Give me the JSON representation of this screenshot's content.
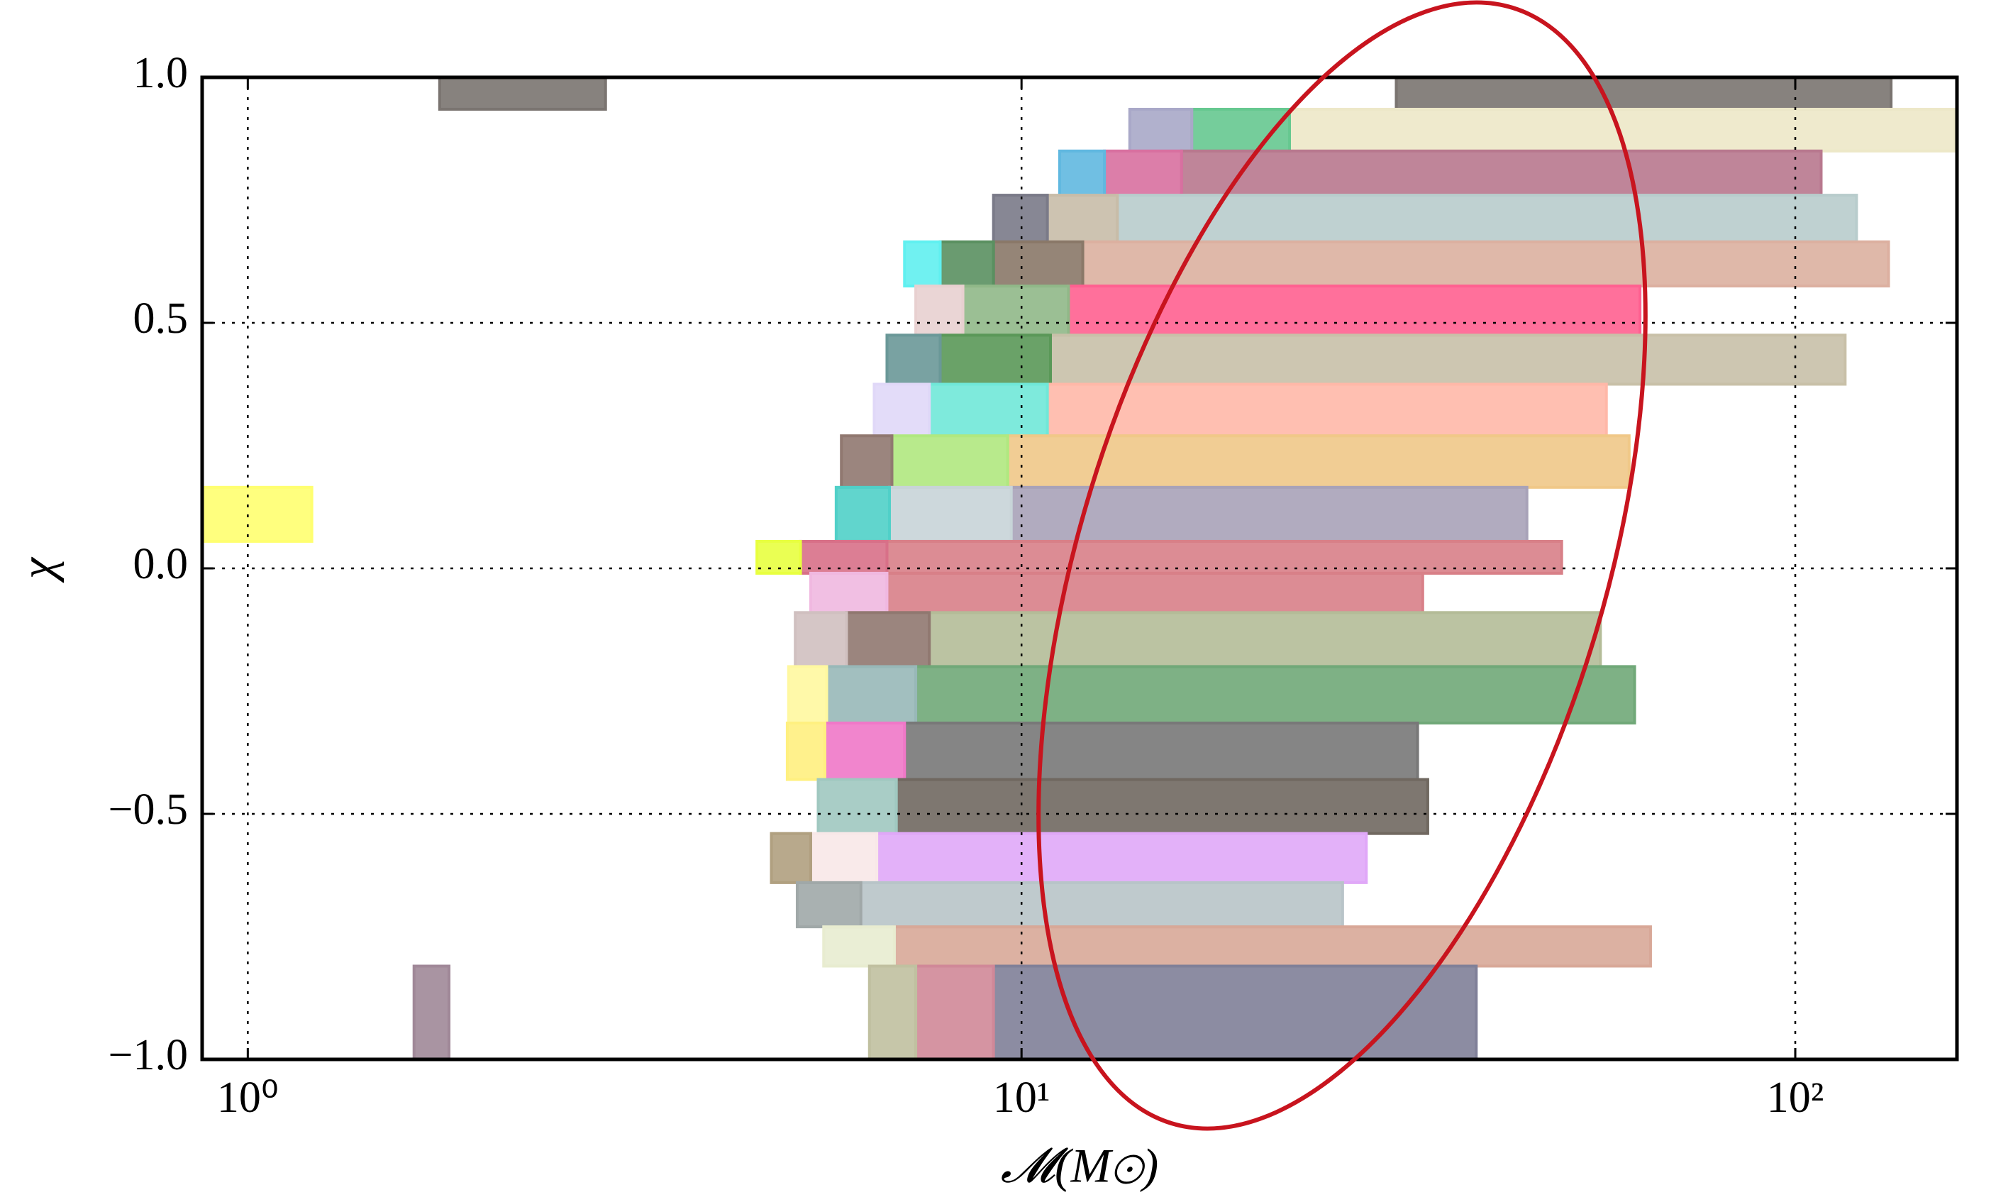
{
  "chart_data": {
    "type": "rectangles",
    "x_label": "𝓜(M⊙)",
    "y_label": "χ",
    "xscale": "log",
    "grid": true,
    "xlim": [
      0.873,
      161.8
    ],
    "ylim": [
      -1,
      1
    ],
    "xticks": [
      {
        "value": 1,
        "label": "10⁰"
      },
      {
        "value": 10,
        "label": "10¹"
      },
      {
        "value": 100,
        "label": "10²"
      }
    ],
    "yticks": [
      {
        "value": -1,
        "label": "−1.0"
      },
      {
        "value": -0.5,
        "label": "−0.5"
      },
      {
        "value": 0,
        "label": "0.0"
      },
      0.5,
      {
        "value": 1,
        "label": "1.0"
      }
    ],
    "rects": [
      {
        "x": [
          30.5,
          133
        ],
        "y": [
          0.935,
          1.0
        ],
        "color": "#7a7470"
      },
      {
        "x": [
          1.77,
          2.9
        ],
        "y": [
          0.935,
          1.0
        ],
        "color": "#7a7470"
      },
      {
        "x": [
          22.2,
          161
        ],
        "y": [
          0.85,
          0.935
        ],
        "color": "#ede8c8"
      },
      {
        "x": [
          16.6,
          22.2
        ],
        "y": [
          0.85,
          0.935
        ],
        "color": "#66c890"
      },
      {
        "x": [
          13.8,
          16.6
        ],
        "y": [
          0.85,
          0.935
        ],
        "color": "#a9a8c8"
      },
      {
        "x": [
          16.1,
          108
        ],
        "y": [
          0.76,
          0.85
        ],
        "color": "#b8788e"
      },
      {
        "x": [
          12.8,
          16.1
        ],
        "y": [
          0.76,
          0.85
        ],
        "color": "#d870a0"
      },
      {
        "x": [
          11.2,
          12.8
        ],
        "y": [
          0.76,
          0.85
        ],
        "color": "#60b8e0"
      },
      {
        "x": [
          13.3,
          120
        ],
        "y": [
          0.665,
          0.76
        ],
        "color": "#b8cccc"
      },
      {
        "x": [
          10.8,
          13.3
        ],
        "y": [
          0.665,
          0.76
        ],
        "color": "#c8bca8"
      },
      {
        "x": [
          9.2,
          10.8
        ],
        "y": [
          0.665,
          0.76
        ],
        "color": "#7a7a88"
      },
      {
        "x": [
          12.0,
          132
        ],
        "y": [
          0.575,
          0.665
        ],
        "color": "#dcb0a0"
      },
      {
        "x": [
          9.2,
          12.0
        ],
        "y": [
          0.575,
          0.665
        ],
        "color": "#8a7868"
      },
      {
        "x": [
          7.85,
          9.2
        ],
        "y": [
          0.575,
          0.665
        ],
        "color": "#5a9060"
      },
      {
        "x": [
          7.06,
          7.85
        ],
        "y": [
          0.575,
          0.665
        ],
        "color": "#60f0f0"
      },
      {
        "x": [
          11.5,
          63
        ],
        "y": [
          0.475,
          0.575
        ],
        "color": "#ff6090"
      },
      {
        "x": [
          8.4,
          11.5
        ],
        "y": [
          0.475,
          0.575
        ],
        "color": "#90b888"
      },
      {
        "x": [
          7.3,
          8.4
        ],
        "y": [
          0.475,
          0.575
        ],
        "color": "#e8d0d0"
      },
      {
        "x": [
          10.9,
          116
        ],
        "y": [
          0.375,
          0.475
        ],
        "color": "#c8c0a8"
      },
      {
        "x": [
          7.85,
          10.9
        ],
        "y": [
          0.375,
          0.475
        ],
        "color": "#5a9858"
      },
      {
        "x": [
          6.7,
          7.85
        ],
        "y": [
          0.375,
          0.475
        ],
        "color": "#6a9898"
      },
      {
        "x": [
          10.8,
          57
        ],
        "y": [
          0.27,
          0.375
        ],
        "color": "#ffb8a8"
      },
      {
        "x": [
          7.6,
          10.8
        ],
        "y": [
          0.27,
          0.375
        ],
        "color": "#70e8d8"
      },
      {
        "x": [
          6.45,
          7.6
        ],
        "y": [
          0.27,
          0.375
        ],
        "color": "#e0d8f8"
      },
      {
        "x": [
          9.6,
          61
        ],
        "y": [
          0.165,
          0.27
        ],
        "color": "#f0c888"
      },
      {
        "x": [
          6.8,
          9.6
        ],
        "y": [
          0.165,
          0.27
        ],
        "color": "#b0e880"
      },
      {
        "x": [
          5.85,
          6.8
        ],
        "y": [
          0.165,
          0.27
        ],
        "color": "#907870"
      },
      {
        "x": [
          9.7,
          45
        ],
        "y": [
          0.055,
          0.165
        ],
        "color": "#a8a2b8"
      },
      {
        "x": [
          6.75,
          9.7
        ],
        "y": [
          0.055,
          0.165
        ],
        "color": "#c8d4d8"
      },
      {
        "x": [
          5.76,
          6.75
        ],
        "y": [
          0.055,
          0.165
        ],
        "color": "#50d0c8"
      },
      {
        "x": [
          0.873,
          1.21
        ],
        "y": [
          0.055,
          0.165
        ],
        "color": "#ffff70"
      },
      {
        "x": [
          6.7,
          49.9
        ],
        "y": [
          -0.01,
          0.055
        ],
        "color": "#d88088"
      },
      {
        "x": [
          5.18,
          6.7
        ],
        "y": [
          -0.01,
          0.055
        ],
        "color": "#d87088"
      },
      {
        "x": [
          4.55,
          5.18
        ],
        "y": [
          -0.01,
          0.055
        ],
        "color": "#e8ff40"
      },
      {
        "x": [
          6.7,
          33
        ],
        "y": [
          -0.09,
          -0.01
        ],
        "color": "#d88088"
      },
      {
        "x": [
          5.34,
          6.7
        ],
        "y": [
          -0.09,
          -0.01
        ],
        "color": "#f0b8e0"
      },
      {
        "x": [
          7.6,
          56
        ],
        "y": [
          -0.2,
          -0.09
        ],
        "color": "#b4bc98"
      },
      {
        "x": [
          5.94,
          7.6
        ],
        "y": [
          -0.2,
          -0.09
        ],
        "color": "#907870"
      },
      {
        "x": [
          5.1,
          5.94
        ],
        "y": [
          -0.2,
          -0.09
        ],
        "color": "#d0c0c0"
      },
      {
        "x": [
          7.3,
          62
        ],
        "y": [
          -0.315,
          -0.2
        ],
        "color": "#70a878"
      },
      {
        "x": [
          5.6,
          7.3
        ],
        "y": [
          -0.315,
          -0.2
        ],
        "color": "#98b8b8"
      },
      {
        "x": [
          5.0,
          5.6
        ],
        "y": [
          -0.315,
          -0.2
        ],
        "color": "#fff8a0"
      },
      {
        "x": [
          7.06,
          32.5
        ],
        "y": [
          -0.43,
          -0.315
        ],
        "color": "#787878"
      },
      {
        "x": [
          5.57,
          7.06
        ],
        "y": [
          -0.43,
          -0.315
        ],
        "color": "#f078c8"
      },
      {
        "x": [
          4.98,
          5.57
        ],
        "y": [
          -0.43,
          -0.315
        ],
        "color": "#fff080"
      },
      {
        "x": [
          6.89,
          33.5
        ],
        "y": [
          -0.54,
          -0.43
        ],
        "color": "#706860"
      },
      {
        "x": [
          5.46,
          6.89
        ],
        "y": [
          -0.54,
          -0.43
        ],
        "color": "#a0c8c0"
      },
      {
        "x": [
          6.5,
          27.9
        ],
        "y": [
          -0.64,
          -0.54
        ],
        "color": "#e0a8f8"
      },
      {
        "x": [
          5.34,
          6.5
        ],
        "y": [
          -0.64,
          -0.54
        ],
        "color": "#f8e8e8"
      },
      {
        "x": [
          4.75,
          5.34
        ],
        "y": [
          -0.64,
          -0.54
        ],
        "color": "#b0a080"
      },
      {
        "x": [
          6.2,
          26
        ],
        "y": [
          -0.73,
          -0.64
        ],
        "color": "#b8c4c8"
      },
      {
        "x": [
          5.13,
          6.2
        ],
        "y": [
          -0.73,
          -0.64
        ],
        "color": "#a0a8a8"
      },
      {
        "x": [
          6.85,
          65
        ],
        "y": [
          -0.81,
          -0.73
        ],
        "color": "#d8a898"
      },
      {
        "x": [
          5.55,
          6.85
        ],
        "y": [
          -0.81,
          -0.73
        ],
        "color": "#e8ecd0"
      },
      {
        "x": [
          9.2,
          38.7
        ],
        "y": [
          -1.0,
          -0.81
        ],
        "color": "#808098"
      },
      {
        "x": [
          7.3,
          9.2
        ],
        "y": [
          -1.0,
          -0.81
        ],
        "color": "#d08898"
      },
      {
        "x": [
          6.36,
          7.3
        ],
        "y": [
          -1.0,
          -0.81
        ],
        "color": "#c0c0a0"
      },
      {
        "x": [
          1.64,
          1.82
        ],
        "y": [
          -1.0,
          -0.81
        ],
        "color": "#a08898"
      }
    ]
  }
}
